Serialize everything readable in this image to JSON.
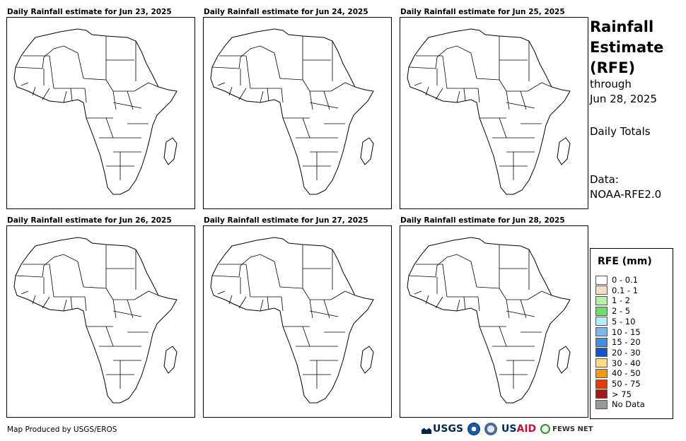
{
  "panels": [
    {
      "title": "Daily Rainfall estimate for Jun 23, 2025"
    },
    {
      "title": "Daily Rainfall estimate for Jun 24, 2025"
    },
    {
      "title": "Daily Rainfall estimate for Jun 25, 2025"
    },
    {
      "title": "Daily Rainfall estimate for Jun 26, 2025"
    },
    {
      "title": "Daily Rainfall estimate for Jun 27, 2025"
    },
    {
      "title": "Daily Rainfall estimate for Jun 28, 2025"
    }
  ],
  "side": {
    "title_lines": [
      "Rainfall",
      "Estimate",
      "(RFE)"
    ],
    "through": "through",
    "date": "Jun 28, 2025",
    "totals": "Daily Totals",
    "data_label": "Data:",
    "data_source": "NOAA-RFE2.0"
  },
  "legend": {
    "title": "RFE (mm)",
    "items": [
      {
        "label": "0 - 0.1",
        "color": "#ffffff"
      },
      {
        "label": "0.1 - 1",
        "color": "#f5dfc0"
      },
      {
        "label": "1 - 2",
        "color": "#b8f0a8"
      },
      {
        "label": "2 - 5",
        "color": "#66e066"
      },
      {
        "label": "5 - 10",
        "color": "#b0f0f8"
      },
      {
        "label": "10 - 15",
        "color": "#7fb6f0"
      },
      {
        "label": "15 - 20",
        "color": "#3d8fe8"
      },
      {
        "label": "20 - 30",
        "color": "#1155d6"
      },
      {
        "label": "30 - 40",
        "color": "#f8dc8a"
      },
      {
        "label": "40 - 50",
        "color": "#f59a10"
      },
      {
        "label": "50 - 75",
        "color": "#e63c0a"
      },
      {
        "label": "> 75",
        "color": "#a01818"
      },
      {
        "label": "No Data",
        "color": "#999999"
      }
    ]
  },
  "footer": {
    "credit": "Map Produced by USGS/EROS"
  },
  "logos": {
    "usgs": "USGS",
    "usaid_a": "US",
    "usaid_b": "AID",
    "fews": "FEWS NET"
  }
}
